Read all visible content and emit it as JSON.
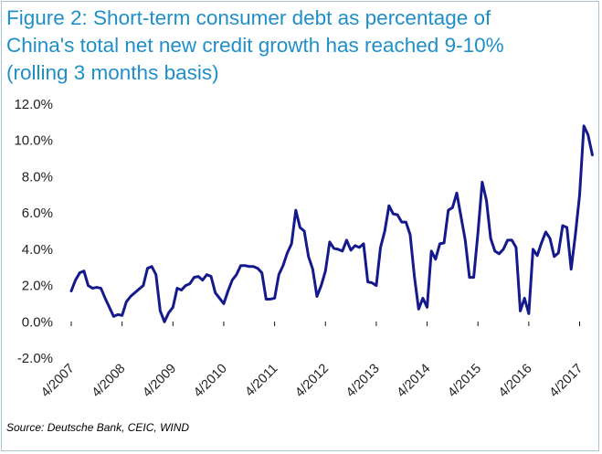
{
  "title_lines": [
    "Figure 2: Short-term consumer debt as percentage of",
    "China's total net new credit growth has reached 9-10%",
    "(rolling 3 months basis)"
  ],
  "source": "Source: Deutsche Bank, CEIC, WIND",
  "colors": {
    "title": "#1f8fc8",
    "line": "#141a8c",
    "frame": "#a9c3d6"
  },
  "chart_data": {
    "type": "line",
    "title": "Figure 2: Short-term consumer debt as percentage of China's total net new credit growth has reached 9-10% (rolling 3 months basis)",
    "xlabel": "",
    "ylabel": "",
    "ylim": [
      -2.0,
      12.0
    ],
    "yticks": [
      "-2.0%",
      "0.0%",
      "2.0%",
      "4.0%",
      "6.0%",
      "8.0%",
      "10.0%",
      "12.0%"
    ],
    "ytick_values": [
      -2,
      0,
      2,
      4,
      6,
      8,
      10,
      12
    ],
    "xticks": [
      "4/2007",
      "4/2008",
      "4/2009",
      "4/2010",
      "4/2011",
      "4/2012",
      "4/2013",
      "4/2014",
      "4/2015",
      "4/2016",
      "4/2017"
    ],
    "grid": false,
    "legend": "none",
    "series": [
      {
        "start": "4/2007",
        "values": [
          1.7,
          2.3,
          2.7,
          2.8,
          2.0,
          1.85,
          1.9,
          1.85,
          1.3,
          0.8,
          0.3,
          0.4,
          0.35,
          1.1,
          1.4,
          1.6,
          1.8,
          2.0,
          2.95,
          3.05,
          2.6,
          0.6,
          0.0,
          0.5,
          0.8,
          1.85,
          1.75,
          2.0,
          2.1,
          2.45,
          2.5,
          2.3,
          2.6,
          2.5,
          1.6,
          1.3,
          1.0,
          1.7,
          2.3,
          2.6,
          3.1,
          3.1,
          3.05,
          3.05,
          2.95,
          2.7,
          1.25,
          1.25,
          1.3,
          2.6,
          3.1,
          3.8,
          4.3,
          6.15,
          5.2,
          5.0,
          3.6,
          2.9,
          1.4,
          2.0,
          2.8,
          4.4,
          4.05,
          4.0,
          3.9,
          4.5,
          3.95,
          4.2,
          4.1,
          4.3,
          2.2,
          2.15,
          2.0,
          4.1,
          5.0,
          6.4,
          5.95,
          5.9,
          5.5,
          5.5,
          4.8,
          2.5,
          0.7,
          1.3,
          0.8,
          3.9,
          3.45,
          4.3,
          4.35,
          6.15,
          6.3,
          7.1,
          5.8,
          4.5,
          2.45,
          2.45,
          4.9,
          7.7,
          6.7,
          4.6,
          3.9,
          3.75,
          4.0,
          4.5,
          4.5,
          4.1,
          0.6,
          1.3,
          0.45,
          4.0,
          3.65,
          4.35,
          4.95,
          4.6,
          3.6,
          3.8,
          5.3,
          5.2,
          2.9,
          4.8,
          7.0,
          10.8,
          10.3,
          9.2
        ]
      }
    ]
  }
}
